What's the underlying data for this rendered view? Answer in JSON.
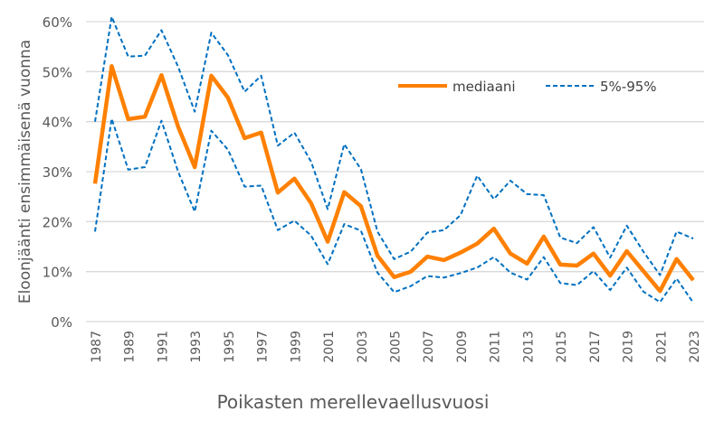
{
  "chart_data": {
    "type": "line",
    "title": "",
    "xlabel": "Poikasten merellevaellusvuosi",
    "ylabel": "Eloonjäänti ensimmäisenä vuonna",
    "ylim": [
      0,
      60
    ],
    "yticks": [
      "0%",
      "10%",
      "20%",
      "30%",
      "40%",
      "50%",
      "60%"
    ],
    "grid": true,
    "legend_placement": "top-right",
    "x": [
      1987,
      1988,
      1989,
      1990,
      1991,
      1992,
      1993,
      1994,
      1995,
      1996,
      1997,
      1998,
      1999,
      2000,
      2001,
      2002,
      2003,
      2004,
      2005,
      2006,
      2007,
      2008,
      2009,
      2010,
      2011,
      2012,
      2013,
      2014,
      2015,
      2016,
      2017,
      2018,
      2019,
      2020,
      2021,
      2022,
      2023
    ],
    "xtick_labels": [
      "1987",
      "1989",
      "1991",
      "1993",
      "1995",
      "1997",
      "1999",
      "2001",
      "2003",
      "2005",
      "2007",
      "2009",
      "2011",
      "2013",
      "2015",
      "2017",
      "2019",
      "2021",
      "2023"
    ],
    "series": [
      {
        "name": "mediaani",
        "color": "#ff8000",
        "style": "solid",
        "values": [
          27.6,
          51.1,
          40.5,
          41.0,
          49.3,
          39.0,
          30.9,
          49.2,
          44.8,
          36.7,
          37.8,
          25.8,
          28.6,
          23.7,
          16.0,
          25.9,
          23.1,
          13.2,
          8.9,
          10.0,
          13.0,
          12.3,
          13.8,
          15.6,
          18.6,
          13.6,
          11.6,
          17.0,
          11.4,
          11.2,
          13.6,
          9.2,
          14.1,
          10.1,
          6.1,
          12.5,
          8.3
        ]
      },
      {
        "name": "5%-95%",
        "color": "#0070c0",
        "style": "dashed",
        "values": [
          40.0,
          61.0,
          53.0,
          53.2,
          58.3,
          51.0,
          42.0,
          57.8,
          53.3,
          46.0,
          49.2,
          35.2,
          37.8,
          32.0,
          22.5,
          35.5,
          30.5,
          18.0,
          12.5,
          14.0,
          17.8,
          18.3,
          21.3,
          29.2,
          24.5,
          28.2,
          25.5,
          25.3,
          16.8,
          15.7,
          18.9,
          12.8,
          19.2,
          14.0,
          9.3,
          18.0,
          16.6
        ]
      },
      {
        "color": "#0070c0",
        "style": "dashed",
        "values": [
          18.0,
          40.6,
          30.4,
          30.9,
          40.2,
          30.0,
          22.0,
          38.2,
          34.4,
          27.0,
          27.2,
          18.3,
          20.2,
          17.2,
          11.5,
          19.5,
          18.2,
          9.8,
          5.9,
          7.1,
          9.1,
          8.8,
          9.7,
          10.8,
          12.9,
          9.8,
          8.4,
          12.9,
          7.7,
          7.3,
          10.1,
          6.3,
          10.8,
          6.0,
          3.9,
          8.6,
          3.8
        ]
      }
    ],
    "gridline_color": "#d9d9d9"
  }
}
